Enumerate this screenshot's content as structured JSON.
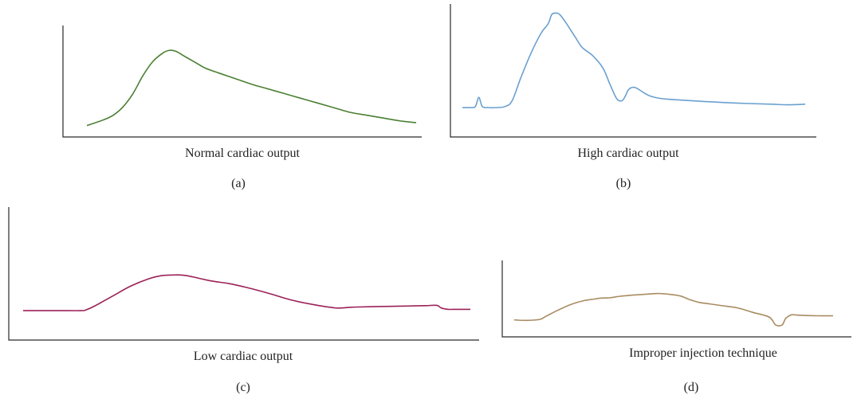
{
  "panels": [
    {
      "caption": "Normal cardiac output",
      "label": "(a)",
      "color": "#4a7f32",
      "chart_data": {
        "type": "line",
        "title": "",
        "xlabel": "Normal cardiac output",
        "ylabel": "",
        "xlim": [
          0,
          100
        ],
        "ylim": [
          0,
          100
        ],
        "grid": false,
        "series": [
          {
            "x": [
              0,
              5,
              8,
              11,
              14,
              17,
              20,
              23,
              25,
              27,
              30,
              33,
              36,
              40,
              45,
              50,
              55,
              60,
              65,
              70,
              75,
              80,
              85,
              90,
              95,
              100
            ],
            "y": [
              2,
              8,
              13,
              22,
              36,
              55,
              70,
              79,
              82,
              81,
              75,
              69,
              63,
              58,
              52,
              46,
              41,
              36,
              31,
              26,
              21,
              16,
              13,
              10,
              7,
              5
            ]
          }
        ]
      }
    },
    {
      "caption": "High cardiac output",
      "label": "(b)",
      "color": "#6aa0cf",
      "chart_data": {
        "type": "line",
        "title": "",
        "xlabel": "High cardiac output",
        "ylabel": "",
        "xlim": [
          0,
          100
        ],
        "ylim": [
          0,
          100
        ],
        "grid": false,
        "series": [
          {
            "x": [
              0,
              2.5,
              3.8,
              4.8,
              5.8,
              7.5,
              10,
              12.5,
              14.5,
              17,
              20,
              23,
              25,
              26,
              26.8,
              27.7,
              28.5,
              30,
              31.5,
              33,
              35,
              38,
              41,
              43,
              45,
              46.5,
              47.5,
              48.5,
              50,
              51.5,
              53,
              55,
              58,
              62,
              70,
              80,
              90,
              95,
              100
            ],
            "y": [
              14,
              14,
              15,
              23,
              15,
              14,
              14,
              15,
              20,
              40,
              62,
              80,
              88,
              96,
              97.5,
              97.5,
              96,
              90,
              83,
              76,
              67,
              60,
              49,
              35,
              22,
              20,
              24,
              30,
              32,
              30,
              27,
              24,
              22,
              21,
              19.5,
              18,
              17,
              16.5,
              17
            ]
          }
        ]
      }
    },
    {
      "caption": "Low cardiac output",
      "label": "(c)",
      "color": "#9b2157",
      "chart_data": {
        "type": "line",
        "title": "",
        "xlabel": "Low cardiac output",
        "ylabel": "",
        "xlim": [
          0,
          100
        ],
        "ylim": [
          0,
          100
        ],
        "grid": false,
        "series": [
          {
            "x": [
              0,
              8,
              13,
              14,
              16,
              20,
              24,
              28,
              31,
              34,
              36,
              38,
              42,
              46,
              50,
              55,
              60,
              65,
              70,
              73,
              75,
              78,
              82,
              86,
              90,
              92.5,
              93.5,
              95,
              97,
              100
            ],
            "y": [
              18,
              18,
              18,
              19,
              25,
              40,
              55,
              66,
              71,
              72,
              71.5,
              69,
              63,
              59,
              53,
              44,
              34,
              27,
              22,
              23,
              23.5,
              24,
              24.5,
              25,
              25.5,
              26,
              22,
              20,
              20,
              20
            ]
          }
        ]
      }
    },
    {
      "caption": "Improper injection technique",
      "label": "(d)",
      "color": "#a88c62",
      "chart_data": {
        "type": "line",
        "title": "",
        "xlabel": "Improper injection technique",
        "ylabel": "",
        "xlim": [
          0,
          100
        ],
        "ylim": [
          0,
          100
        ],
        "grid": false,
        "series": [
          {
            "x": [
              0,
              4,
              8,
              10,
              14,
              18,
              22,
              25,
              27,
              30,
              33,
              36,
              40,
              44,
              46,
              48,
              52,
              55,
              58,
              62,
              65,
              70,
              75,
              80,
              82,
              84,
              85,
              86,
              87,
              88,
              90,
              95,
              100
            ],
            "y": [
              16,
              15,
              17,
              24,
              38,
              50,
              58,
              61,
              63,
              64,
              67,
              69,
              71,
              73,
              73,
              72,
              68,
              60,
              54,
              50,
              47,
              42,
              32,
              22,
              5,
              5,
              18,
              24,
              27,
              27,
              26,
              25,
              25
            ]
          }
        ]
      }
    }
  ]
}
